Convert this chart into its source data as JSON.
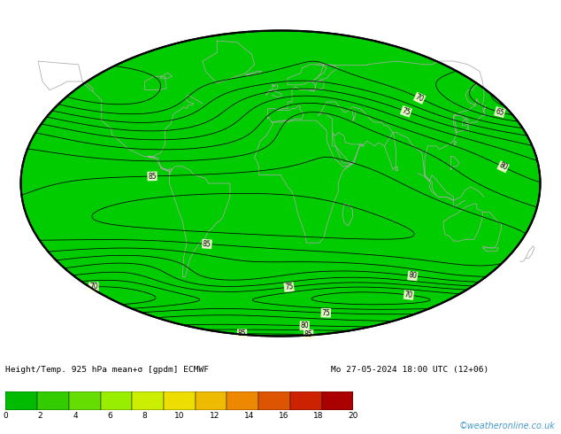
{
  "map_bg_color": "#00cc00",
  "contour_color": "#000000",
  "coastline_color": "#aaaaaa",
  "label_bg": "#ffffdd",
  "bottom_text_left": "Height/Temp. 925 hPa mean+σ [gpdm] ECMWF",
  "bottom_text_right": "Mo 27-05-2024 18:00 UTC (12+06)",
  "watermark": "©weatheronline.co.uk",
  "watermark_color": "#4499cc",
  "cbar_ticks": [
    0,
    2,
    4,
    6,
    8,
    10,
    12,
    14,
    16,
    18,
    20
  ],
  "cbar_colors": [
    "#00bb00",
    "#33cc00",
    "#66dd00",
    "#99ee00",
    "#ccee00",
    "#eedd00",
    "#eebb00",
    "#ee8800",
    "#dd5500",
    "#cc2200",
    "#aa0000"
  ],
  "fig_width": 6.34,
  "fig_height": 4.9,
  "dpi": 100
}
